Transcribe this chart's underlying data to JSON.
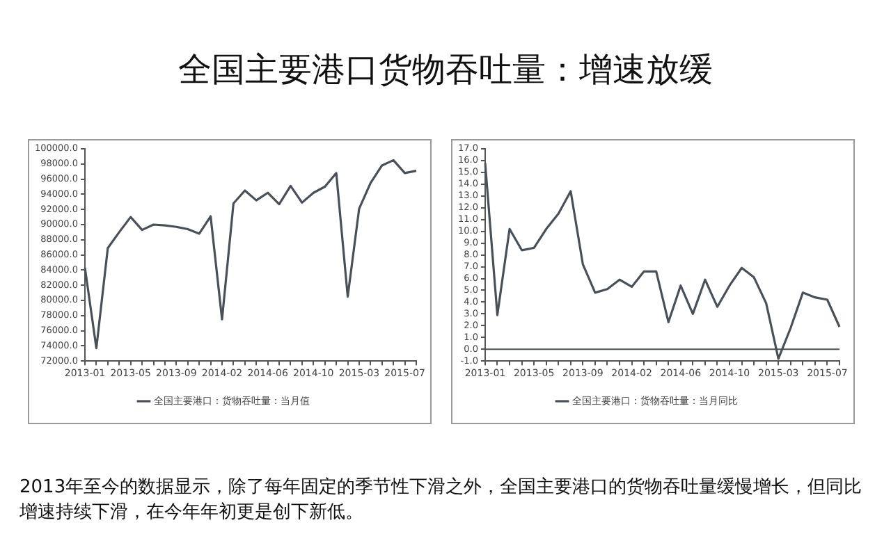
{
  "chart_data": [
    {
      "type": "line",
      "title": "全国主要港口货物吞吐量：增速放缓",
      "categories": [
        "2013-01",
        null,
        null,
        null,
        "2013-05",
        null,
        null,
        null,
        "2013-09",
        null,
        null,
        null,
        "2014-02",
        null,
        null,
        null,
        "2014-06",
        null,
        null,
        null,
        "2014-10",
        null,
        null,
        null,
        "2015-03",
        null,
        null,
        null,
        "2015-07",
        null
      ],
      "series": [
        {
          "name": "全国主要港口：货物吞吐量：当月值",
          "color": "#4a5058",
          "values": [
            84300,
            73700,
            86900,
            89000,
            91000,
            89300,
            90000,
            89900,
            89700,
            89400,
            88800,
            91100,
            77500,
            92800,
            94500,
            93200,
            94200,
            92700,
            95100,
            92900,
            94200,
            95000,
            96800,
            80500,
            92100,
            95500,
            97800,
            98500,
            96800,
            97100
          ]
        }
      ],
      "ylim": [
        72000,
        100000
      ],
      "yticks": [
        {
          "value": 72000,
          "label": "72000.0"
        },
        {
          "value": 74000,
          "label": "74000.0"
        },
        {
          "value": 76000,
          "label": "76000.0"
        },
        {
          "value": 78000,
          "label": "78000.0"
        },
        {
          "value": 80000,
          "label": "80000.0"
        },
        {
          "value": 82000,
          "label": "82000.0"
        },
        {
          "value": 84000,
          "label": "84000.0"
        },
        {
          "value": 86000,
          "label": "86000.0"
        },
        {
          "value": 88000,
          "label": "88000.0"
        },
        {
          "value": 90000,
          "label": "90000.0"
        },
        {
          "value": 92000,
          "label": "92000.0"
        },
        {
          "value": 94000,
          "label": "94000.0"
        },
        {
          "value": 96000,
          "label": "96000.0"
        },
        {
          "value": 98000,
          "label": "98000.0"
        },
        {
          "value": 100000,
          "label": "100000.0"
        }
      ],
      "legend": "bottom"
    },
    {
      "type": "line",
      "categories": [
        "2013-01",
        null,
        null,
        null,
        "2013-05",
        null,
        null,
        null,
        "2013-09",
        null,
        null,
        null,
        "2014-02",
        null,
        null,
        null,
        "2014-06",
        null,
        null,
        null,
        "2014-10",
        null,
        null,
        null,
        "2015-03",
        null,
        null,
        null,
        "2015-07",
        null
      ],
      "series": [
        {
          "name": "全国主要港口：货物吞吐量：当月同比",
          "color": "#4a5058",
          "values": [
            15.8,
            2.9,
            10.2,
            8.4,
            8.6,
            10.2,
            11.5,
            13.4,
            7.2,
            4.8,
            5.1,
            5.9,
            5.3,
            6.6,
            6.6,
            2.3,
            5.4,
            3.0,
            5.9,
            3.6,
            5.4,
            6.9,
            6.1,
            3.9,
            -0.8,
            1.8,
            4.8,
            4.4,
            4.2,
            1.9
          ]
        }
      ],
      "ylim": [
        -1,
        17
      ],
      "yticks": [
        {
          "value": -1,
          "label": "-1.0"
        },
        {
          "value": 0,
          "label": "0.0"
        },
        {
          "value": 1,
          "label": "1.0"
        },
        {
          "value": 2,
          "label": "2.0"
        },
        {
          "value": 3,
          "label": "3.0"
        },
        {
          "value": 4,
          "label": "4.0"
        },
        {
          "value": 5,
          "label": "5.0"
        },
        {
          "value": 6,
          "label": "6.0"
        },
        {
          "value": 7,
          "label": "7.0"
        },
        {
          "value": 8,
          "label": "8.0"
        },
        {
          "value": 9,
          "label": "9.0"
        },
        {
          "value": 10,
          "label": "10.0"
        },
        {
          "value": 11,
          "label": "11.0"
        },
        {
          "value": 12,
          "label": "12.0"
        },
        {
          "value": 13,
          "label": "13.0"
        },
        {
          "value": 14,
          "label": "14.0"
        },
        {
          "value": 15,
          "label": "15.0"
        },
        {
          "value": 16,
          "label": "16.0"
        },
        {
          "value": 17,
          "label": "17.0"
        }
      ],
      "ref_lines": [
        {
          "axis": "y",
          "value": 0,
          "color": "#4a5058"
        }
      ],
      "legend": "bottom",
      "annotations": [
        "2013年至今的数据显示，除了每年固定的季节性下滑之外，全国主要港口的货物吞吐量缓慢增长，但同比增速持续下滑，在今年年初更是创下新低。"
      ]
    }
  ]
}
